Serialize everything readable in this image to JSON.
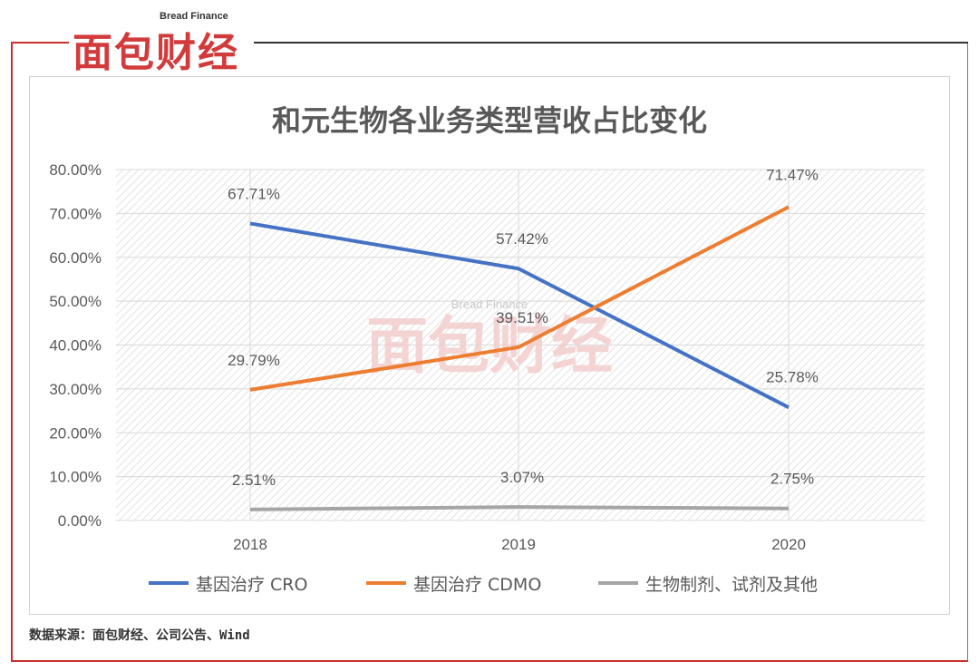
{
  "brand": {
    "logo_en": "Bread Finance",
    "logo_cn": "面包财经",
    "accent_color": "#c9302c"
  },
  "chart_data": {
    "type": "line",
    "title": "和元生物各业务类型营收占比变化",
    "categories": [
      "2018",
      "2019",
      "2020"
    ],
    "ylim": [
      0,
      80
    ],
    "yticks": [
      "0.00%",
      "10.00%",
      "20.00%",
      "30.00%",
      "40.00%",
      "50.00%",
      "60.00%",
      "70.00%",
      "80.00%"
    ],
    "grid": true,
    "legend_position": "bottom",
    "series": [
      {
        "name": "基因治疗 CRO",
        "color": "#4472c4",
        "values": [
          67.71,
          57.42,
          25.78
        ],
        "labels": [
          "67.71%",
          "57.42%",
          "25.78%"
        ]
      },
      {
        "name": "基因治疗 CDMO",
        "color": "#ed7d31",
        "values": [
          29.79,
          39.51,
          71.47
        ],
        "labels": [
          "29.79%",
          "39.51%",
          "71.47%"
        ]
      },
      {
        "name": "生物制剂、试剂及其他",
        "color": "#a5a5a5",
        "values": [
          2.51,
          3.07,
          2.75
        ],
        "labels": [
          "2.51%",
          "3.07%",
          "2.75%"
        ]
      }
    ],
    "watermark_en": "Bread Finance",
    "watermark_cn": "面包财经"
  },
  "footer": {
    "source": "数据来源：面包财经、公司公告、Wind"
  }
}
